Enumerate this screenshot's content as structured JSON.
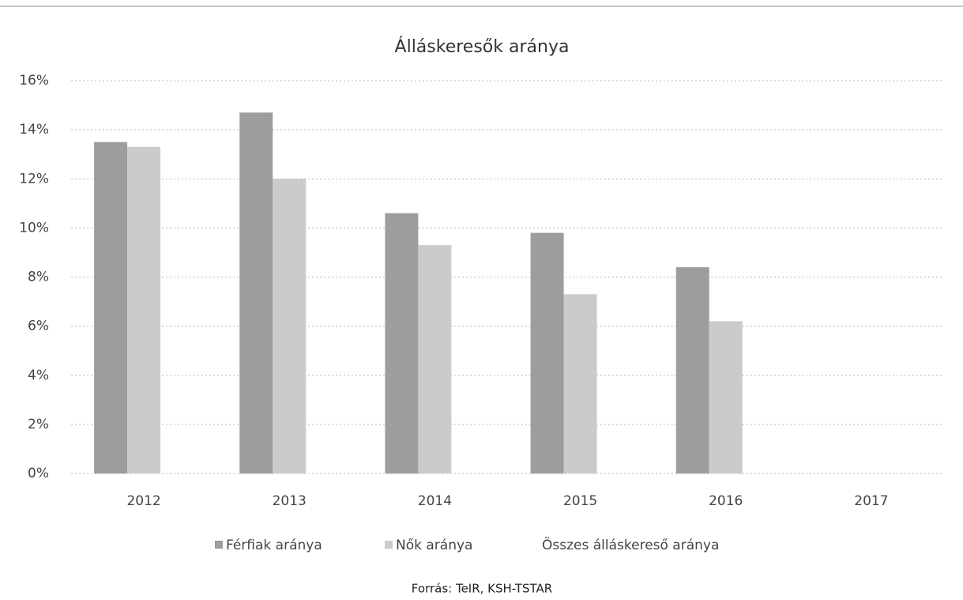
{
  "chart_data": {
    "type": "bar",
    "title": "Álláskeresők aránya",
    "categories": [
      "2012",
      "2013",
      "2014",
      "2015",
      "2016",
      "2017"
    ],
    "series": [
      {
        "name": "Férfiak aránya",
        "color": "#9d9d9d",
        "values": [
          13.5,
          14.7,
          10.6,
          9.8,
          8.4,
          null
        ]
      },
      {
        "name": "Nők aránya",
        "color": "#cbcbcb",
        "values": [
          13.3,
          12.0,
          9.3,
          7.3,
          6.2,
          null
        ]
      },
      {
        "name": "Összes álláskereső aránya",
        "color": "#ffffff",
        "values": [
          null,
          null,
          null,
          null,
          null,
          null
        ]
      }
    ],
    "ylim": [
      0,
      16
    ],
    "yticks": [
      {
        "value": 0,
        "label": "0%"
      },
      {
        "value": 2,
        "label": "2%"
      },
      {
        "value": 4,
        "label": "4%"
      },
      {
        "value": 6,
        "label": "6%"
      },
      {
        "value": 8,
        "label": "8%"
      },
      {
        "value": 10,
        "label": "10%"
      },
      {
        "value": 12,
        "label": "12%"
      },
      {
        "value": 14,
        "label": "14%"
      },
      {
        "value": 16,
        "label": "16%"
      }
    ],
    "grid": true,
    "legend": "bottom",
    "source": "Forrás: TeIR, KSH-TSTAR"
  }
}
